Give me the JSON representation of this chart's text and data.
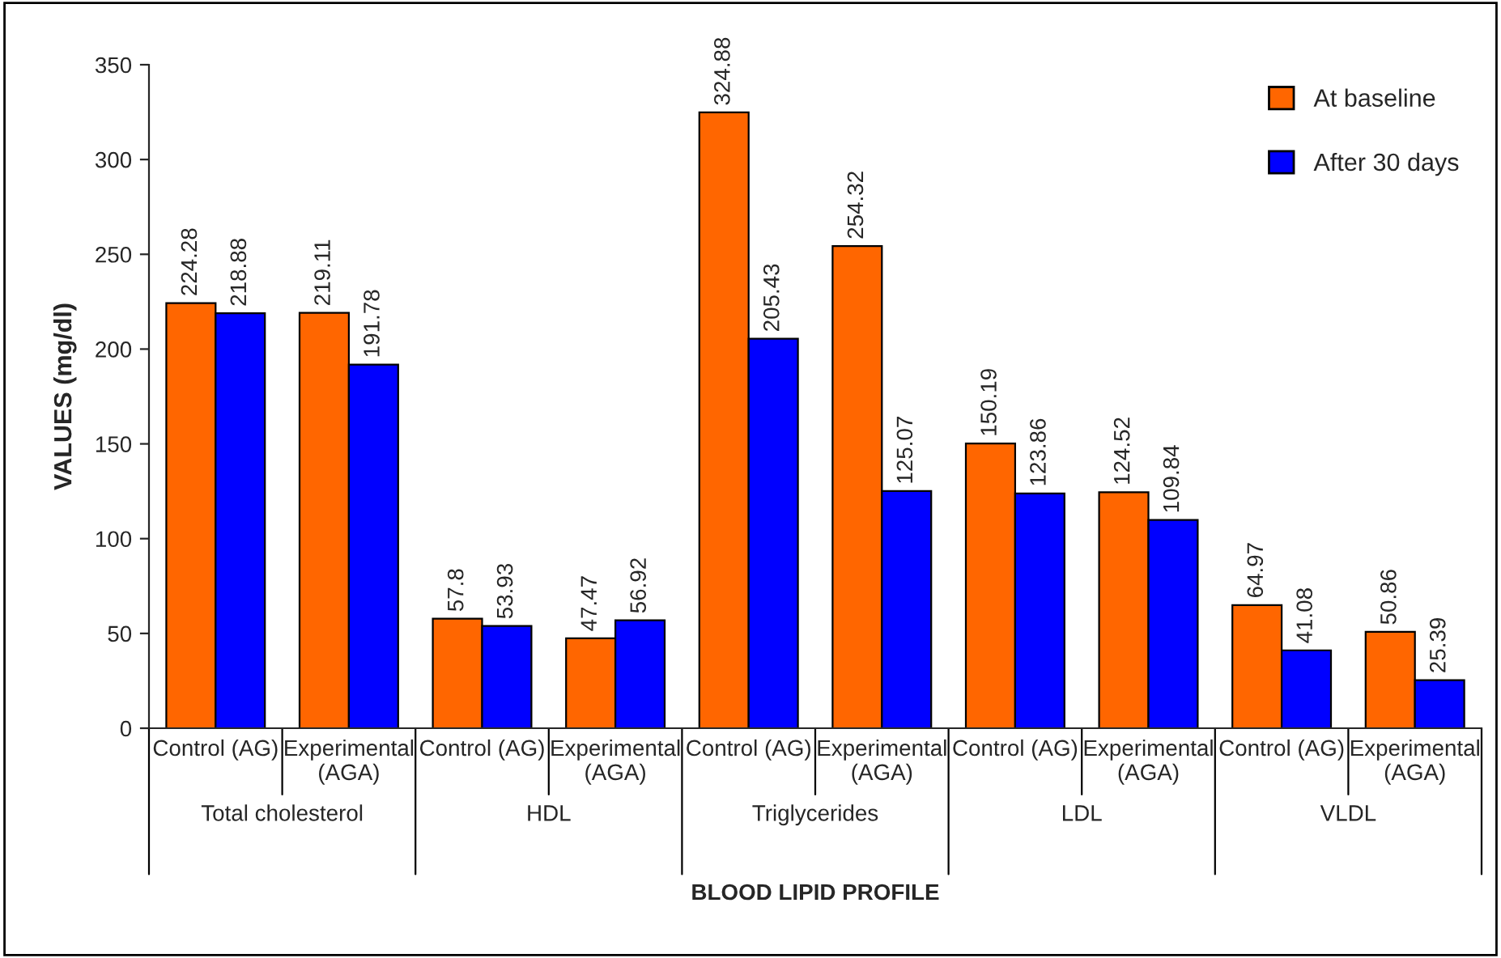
{
  "chart_data": {
    "type": "bar",
    "xlabel": "BLOOD LIPID PROFILE",
    "ylabel": "VALUES (mg/dl)",
    "categories": [
      "Control (AG)",
      "Experimental\n(AGA)",
      "Control (AG)",
      "Experimental\n(AGA)",
      "Control (AG)",
      "Experimental\n(AGA)",
      "Control (AG)",
      "Experimental\n(AGA)",
      "Control (AG)",
      "Experimental\n(AGA)"
    ],
    "series": [
      {
        "name": "At baseline",
        "color": "#ff6600",
        "values": [
          224.28,
          219.11,
          57.8,
          47.47,
          324.88,
          254.32,
          150.19,
          124.52,
          64.97,
          50.86
        ]
      },
      {
        "name": "After 30 days",
        "color": "#0000ff",
        "values": [
          218.88,
          191.78,
          53.93,
          56.92,
          205.43,
          125.07,
          123.86,
          109.84,
          41.08,
          25.39
        ]
      }
    ],
    "annotations": [
      "Total cholesterol",
      "HDL",
      "Triglycerides",
      "LDL",
      "VLDL"
    ],
    "ylim": [
      0,
      350
    ],
    "yticks": [
      0,
      50,
      100,
      150,
      200,
      250,
      300,
      350
    ],
    "data_labels": true,
    "legend": "top right",
    "grid": false
  }
}
